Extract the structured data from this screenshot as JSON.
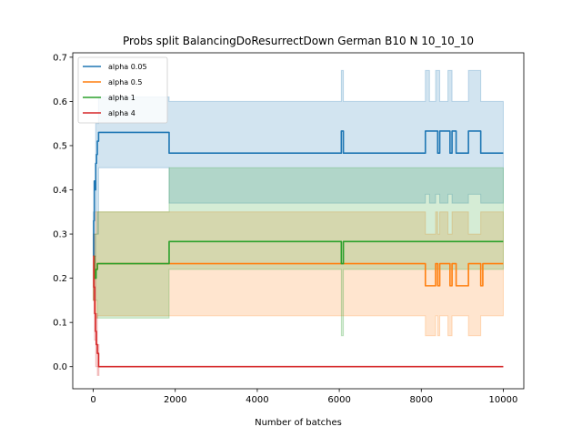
{
  "chart_data": {
    "type": "line",
    "title": "Probs split BalancingDoResurrectDown German B10 N 10_10_10",
    "xlabel": "Number of batches",
    "ylabel": "",
    "xlim": [
      -500,
      10500
    ],
    "ylim": [
      -0.05,
      0.71
    ],
    "xticks": [
      0,
      2000,
      4000,
      6000,
      8000,
      10000
    ],
    "yticks": [
      0.0,
      0.1,
      0.2,
      0.3,
      0.4,
      0.5,
      0.6,
      0.7
    ],
    "ytick_labels": [
      "0.0",
      "0.1",
      "0.2",
      "0.3",
      "0.4",
      "0.5",
      "0.6",
      "0.7"
    ],
    "legend_position": "upper left",
    "grid": false,
    "series": [
      {
        "name": "alpha 0.05",
        "color": "#1f77b4",
        "steps": [
          [
            0,
            0.25
          ],
          [
            10,
            0.33
          ],
          [
            25,
            0.42
          ],
          [
            45,
            0.4
          ],
          [
            60,
            0.46
          ],
          [
            80,
            0.48
          ],
          [
            100,
            0.51
          ],
          [
            130,
            0.53
          ],
          [
            1850,
            0.483
          ],
          [
            6050,
            0.533
          ],
          [
            6100,
            0.483
          ],
          [
            8100,
            0.533
          ],
          [
            8400,
            0.483
          ],
          [
            8450,
            0.533
          ],
          [
            8700,
            0.483
          ],
          [
            8750,
            0.533
          ],
          [
            8850,
            0.483
          ],
          [
            9150,
            0.533
          ],
          [
            9450,
            0.483
          ],
          [
            10000,
            0.483
          ]
        ],
        "band": [
          [
            0,
            0.25,
            0.35
          ],
          [
            60,
            0.3,
            0.55
          ],
          [
            130,
            0.45,
            0.61
          ],
          [
            1850,
            0.37,
            0.6
          ],
          [
            6050,
            0.37,
            0.67
          ],
          [
            6100,
            0.37,
            0.6
          ],
          [
            8100,
            0.39,
            0.67
          ],
          [
            8200,
            0.37,
            0.6
          ],
          [
            8350,
            0.39,
            0.67
          ],
          [
            8450,
            0.37,
            0.6
          ],
          [
            8650,
            0.39,
            0.67
          ],
          [
            8750,
            0.37,
            0.6
          ],
          [
            9150,
            0.39,
            0.67
          ],
          [
            9450,
            0.37,
            0.6
          ],
          [
            10000,
            0.37,
            0.6
          ]
        ]
      },
      {
        "name": "alpha 0.5",
        "color": "#ff7f0e",
        "steps": [
          [
            0,
            0.25
          ],
          [
            20,
            0.2
          ],
          [
            60,
            0.22
          ],
          [
            100,
            0.233
          ],
          [
            8100,
            0.183
          ],
          [
            8350,
            0.233
          ],
          [
            8400,
            0.183
          ],
          [
            8450,
            0.233
          ],
          [
            8700,
            0.183
          ],
          [
            8750,
            0.233
          ],
          [
            8850,
            0.183
          ],
          [
            9150,
            0.233
          ],
          [
            9450,
            0.183
          ],
          [
            9500,
            0.233
          ],
          [
            10000,
            0.233
          ]
        ],
        "band": [
          [
            0,
            0.15,
            0.3
          ],
          [
            60,
            0.11,
            0.35
          ],
          [
            100,
            0.115,
            0.35
          ],
          [
            8100,
            0.07,
            0.3
          ],
          [
            8350,
            0.115,
            0.35
          ],
          [
            8400,
            0.07,
            0.3
          ],
          [
            8450,
            0.115,
            0.35
          ],
          [
            8650,
            0.07,
            0.3
          ],
          [
            8750,
            0.115,
            0.35
          ],
          [
            9150,
            0.07,
            0.3
          ],
          [
            9450,
            0.115,
            0.35
          ],
          [
            10000,
            0.115,
            0.35
          ]
        ]
      },
      {
        "name": "alpha 1",
        "color": "#2ca02c",
        "steps": [
          [
            0,
            0.25
          ],
          [
            30,
            0.2
          ],
          [
            70,
            0.22
          ],
          [
            100,
            0.233
          ],
          [
            1850,
            0.283
          ],
          [
            6050,
            0.233
          ],
          [
            6100,
            0.283
          ],
          [
            10000,
            0.283
          ]
        ],
        "band": [
          [
            0,
            0.15,
            0.3
          ],
          [
            100,
            0.11,
            0.35
          ],
          [
            1850,
            0.22,
            0.45
          ],
          [
            6050,
            0.07,
            0.45
          ],
          [
            6100,
            0.22,
            0.45
          ],
          [
            10000,
            0.22,
            0.45
          ]
        ]
      },
      {
        "name": "alpha 4",
        "color": "#d62728",
        "steps": [
          [
            0,
            0.25
          ],
          [
            15,
            0.18
          ],
          [
            35,
            0.12
          ],
          [
            55,
            0.08
          ],
          [
            75,
            0.05
          ],
          [
            100,
            0.03
          ],
          [
            130,
            0.0
          ],
          [
            10000,
            0.0
          ]
        ],
        "band": [
          [
            0,
            0.15,
            0.3
          ],
          [
            30,
            0.06,
            0.25
          ],
          [
            60,
            0.0,
            0.12
          ],
          [
            100,
            -0.02,
            0.05
          ],
          [
            140,
            0.0,
            0.0
          ],
          [
            10000,
            0.0,
            0.0
          ]
        ]
      }
    ]
  }
}
